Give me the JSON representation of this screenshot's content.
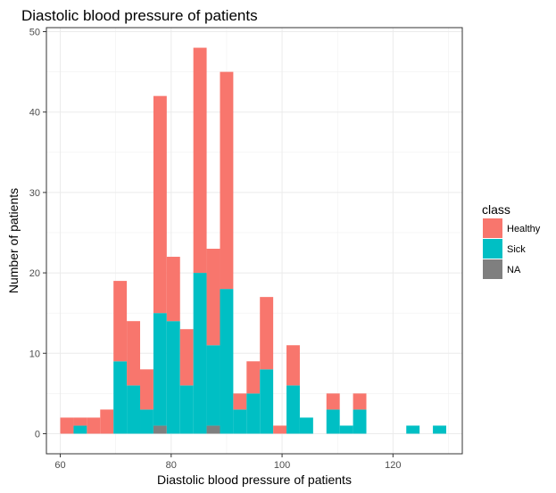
{
  "chart_data": {
    "type": "bar",
    "stacked": true,
    "title": "Diastolic blood pressure of patients",
    "xlabel": "Diastolic blood pressure of patients",
    "ylabel": "Number of patients",
    "xlim": [
      57.5,
      132.5
    ],
    "ylim": [
      -2.5,
      50.5
    ],
    "xticks": [
      60,
      80,
      100,
      120
    ],
    "yticks": [
      0,
      10,
      20,
      30,
      40,
      50
    ],
    "bin_width": 2.4,
    "grid": true,
    "legend": {
      "title": "class",
      "position": "right"
    },
    "x": [
      61.2,
      63.6,
      66.0,
      68.4,
      70.8,
      73.2,
      75.6,
      78.0,
      80.4,
      82.8,
      85.2,
      87.6,
      90.0,
      92.4,
      94.8,
      97.2,
      99.6,
      102.0,
      104.4,
      106.8,
      109.2,
      111.6,
      114.0,
      116.4,
      118.8,
      121.2,
      123.6,
      126.0,
      128.4
    ],
    "series": [
      {
        "name": "Healthy",
        "color": "#F8766D",
        "values": [
          2,
          1,
          2,
          3,
          10,
          8,
          5,
          27,
          8,
          7,
          28,
          12,
          27,
          2,
          4,
          9,
          1,
          5,
          0,
          0,
          2,
          0,
          2,
          0,
          0,
          0,
          0,
          0,
          0
        ]
      },
      {
        "name": "Sick",
        "color": "#00BFC4",
        "values": [
          0,
          1,
          0,
          0,
          9,
          6,
          3,
          14,
          14,
          6,
          20,
          10,
          18,
          3,
          5,
          8,
          0,
          6,
          2,
          0,
          3,
          1,
          3,
          0,
          0,
          0,
          1,
          0,
          1
        ]
      },
      {
        "name": "NA",
        "color": "#7F7F7F",
        "values": [
          0,
          0,
          0,
          0,
          0,
          0,
          0,
          1,
          0,
          0,
          0,
          1,
          0,
          0,
          0,
          0,
          0,
          0,
          0,
          0,
          0,
          0,
          0,
          0,
          0,
          0,
          0,
          0,
          0
        ]
      }
    ]
  }
}
